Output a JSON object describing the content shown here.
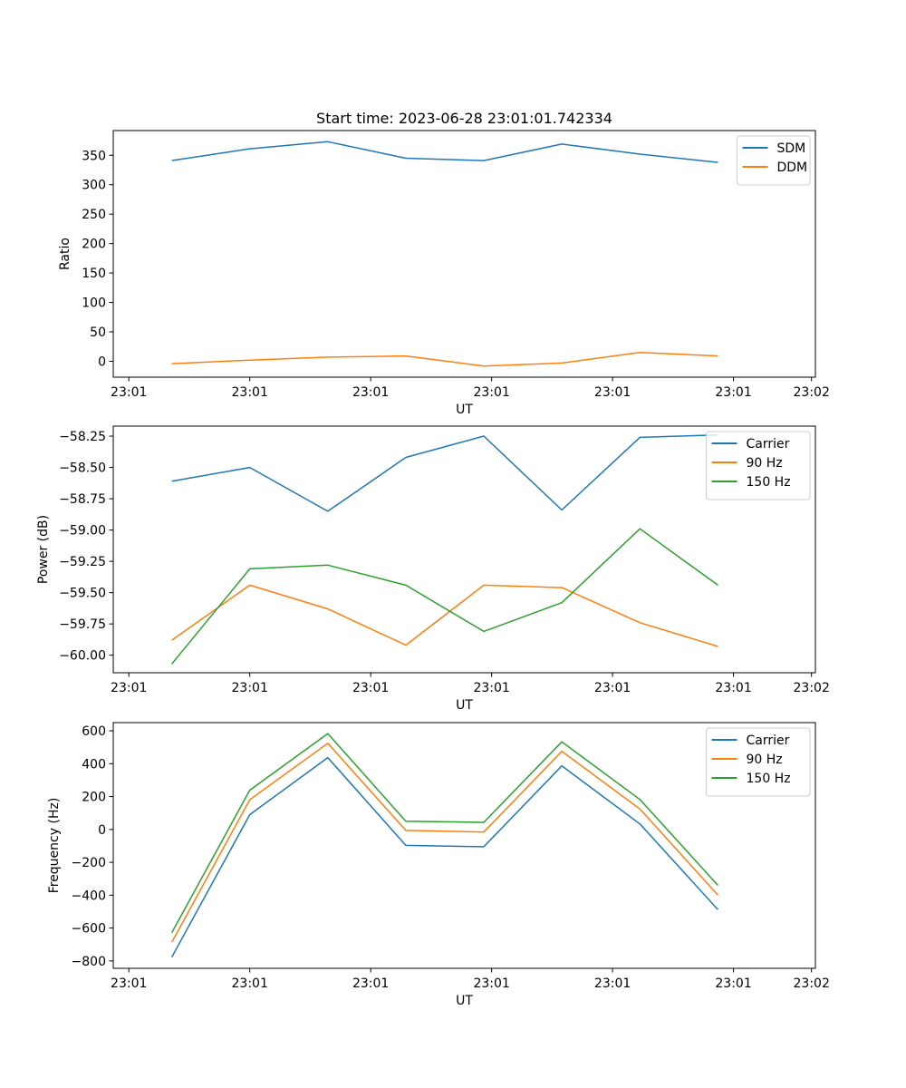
{
  "figure": {
    "title": "Start time: 2023-06-28 23:01:01.742334"
  },
  "chart_data": [
    {
      "type": "line",
      "title": "Start time: 2023-06-28 23:01:01.742334",
      "xlabel": "UT",
      "ylabel": "Ratio",
      "x_tick_labels": [
        "23:01",
        "23:01",
        "23:01",
        "23:01",
        "23:01",
        "23:01",
        "23:02"
      ],
      "x": [
        1,
        2,
        3,
        4,
        5,
        6,
        7,
        8
      ],
      "xlim": [
        0.25,
        9.25
      ],
      "ylim": [
        -27,
        392
      ],
      "y_ticks": [
        0,
        50,
        100,
        150,
        200,
        250,
        300,
        350
      ],
      "legend": "top-right",
      "series": [
        {
          "name": "SDM",
          "color": "#1f77b4",
          "values": [
            341,
            361,
            373,
            345,
            341,
            369,
            352,
            338
          ]
        },
        {
          "name": "DDM",
          "color": "#ff7f0e",
          "values": [
            -4,
            2,
            7,
            9,
            -8,
            -3,
            15,
            9
          ]
        }
      ]
    },
    {
      "type": "line",
      "title": "",
      "xlabel": "UT",
      "ylabel": "Power (dB)",
      "x_tick_labels": [
        "23:01",
        "23:01",
        "23:01",
        "23:01",
        "23:01",
        "23:01",
        "23:02"
      ],
      "x": [
        1,
        2,
        3,
        4,
        5,
        6,
        7,
        8
      ],
      "xlim": [
        0.25,
        9.25
      ],
      "ylim": [
        -60.14,
        -58.17
      ],
      "y_ticks": [
        -60.0,
        -59.75,
        -59.5,
        -59.25,
        -59.0,
        -58.75,
        -58.5,
        -58.25
      ],
      "y_tick_labels": [
        "−60.00",
        "−59.75",
        "−59.50",
        "−59.25",
        "−59.00",
        "−58.75",
        "−58.50",
        "−58.25"
      ],
      "legend": "top-right",
      "series": [
        {
          "name": "Carrier",
          "color": "#1f77b4",
          "values": [
            -58.61,
            -58.5,
            -58.85,
            -58.42,
            -58.25,
            -58.84,
            -58.26,
            -58.24
          ]
        },
        {
          "name": "90 Hz",
          "color": "#ff7f0e",
          "values": [
            -59.88,
            -59.44,
            -59.63,
            -59.92,
            -59.44,
            -59.46,
            -59.74,
            -59.93
          ]
        },
        {
          "name": "150 Hz",
          "color": "#2ca02c",
          "values": [
            -60.07,
            -59.31,
            -59.28,
            -59.44,
            -59.81,
            -59.58,
            -58.99,
            -59.44
          ]
        }
      ]
    },
    {
      "type": "line",
      "title": "",
      "xlabel": "UT",
      "ylabel": "Frequency (Hz)",
      "x_tick_labels": [
        "23:01",
        "23:01",
        "23:01",
        "23:01",
        "23:01",
        "23:01",
        "23:02"
      ],
      "x": [
        1,
        2,
        3,
        4,
        5,
        6,
        7,
        8
      ],
      "xlim": [
        0.25,
        9.25
      ],
      "ylim": [
        -845,
        650
      ],
      "y_ticks": [
        -800,
        -600,
        -400,
        -200,
        0,
        200,
        400,
        600
      ],
      "y_tick_labels": [
        "−800",
        "−600",
        "−400",
        "−200",
        "0",
        "200",
        "400",
        "600"
      ],
      "legend": "top-right",
      "series": [
        {
          "name": "Carrier",
          "color": "#1f77b4",
          "values": [
            -777,
            90,
            437,
            -97,
            -105,
            387,
            33,
            -488
          ]
        },
        {
          "name": "90 Hz",
          "color": "#ff7f0e",
          "values": [
            -686,
            181,
            524,
            -6,
            -16,
            475,
            124,
            -400
          ]
        },
        {
          "name": "150 Hz",
          "color": "#2ca02c",
          "values": [
            -628,
            239,
            583,
            50,
            43,
            533,
            182,
            -340
          ]
        }
      ]
    }
  ]
}
